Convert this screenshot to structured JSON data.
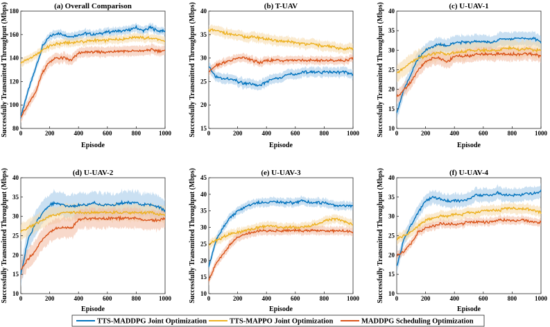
{
  "figure": {
    "series_names": [
      "TTS-MADDPG Joint Optimization",
      "TTS-MAPPO Joint Optimization",
      "MADDPG Scheduling Optimization"
    ],
    "series_colors": [
      "#0072BD",
      "#EDB120",
      "#D95319"
    ],
    "band_colors": [
      "#9EC7E8",
      "#F5D9A8",
      "#F2B9A0"
    ],
    "shared_ylabel": "Successfully Transmitted Throughput (Mbps)",
    "shared_xlabel": "Episode"
  },
  "chart_data": [
    {
      "type": "line",
      "title": "(a) Overall Comparison",
      "xlabel": "Episode",
      "ylabel": "Successfully Transmitted Throughput (Mbps)",
      "xlim": [
        0,
        1000
      ],
      "ylim": [
        80,
        180
      ],
      "xticks": [
        0,
        200,
        400,
        600,
        800,
        1000
      ],
      "yticks": [
        80,
        100,
        120,
        140,
        160,
        180
      ],
      "x": [
        0,
        50,
        100,
        150,
        200,
        250,
        300,
        350,
        400,
        450,
        500,
        550,
        600,
        650,
        700,
        750,
        800,
        850,
        900,
        950,
        1000
      ],
      "series": [
        {
          "name": "TTS-MADDPG Joint Optimization",
          "values": [
            90,
            112,
            130,
            150,
            158,
            161,
            160,
            158,
            160,
            161,
            160,
            161,
            162,
            163,
            163,
            164,
            166,
            163,
            166,
            163,
            163
          ],
          "band": 4
        },
        {
          "name": "TTS-MAPPO Joint Optimization",
          "values": [
            136,
            139,
            142,
            147,
            150,
            152,
            153,
            153,
            154,
            154,
            155,
            155,
            155,
            156,
            156,
            157,
            158,
            157,
            157,
            156,
            154
          ],
          "band": 4
        },
        {
          "name": "MADDPG Scheduling Optimization",
          "values": [
            90,
            100,
            110,
            128,
            137,
            140,
            140,
            138,
            144,
            145,
            145,
            145,
            145,
            146,
            146,
            146,
            146,
            146,
            147,
            146,
            146
          ],
          "band": 5
        }
      ]
    },
    {
      "type": "line",
      "title": "(b) T-UAV",
      "xlabel": "Episode",
      "ylabel": "Successfully Transmitted Throughput (Mbps)",
      "xlim": [
        0,
        1000
      ],
      "ylim": [
        15,
        40
      ],
      "xticks": [
        0,
        200,
        400,
        600,
        800,
        1000
      ],
      "yticks": [
        15,
        20,
        25,
        30,
        35,
        40
      ],
      "x": [
        0,
        50,
        100,
        150,
        200,
        250,
        300,
        350,
        400,
        450,
        500,
        550,
        600,
        650,
        700,
        750,
        800,
        850,
        900,
        950,
        1000
      ],
      "series": [
        {
          "name": "TTS-MADDPG Joint Optimization",
          "values": [
            28,
            26,
            25.5,
            25.5,
            25,
            24.5,
            24.5,
            24,
            25,
            25.5,
            26,
            26.5,
            26.5,
            27,
            27,
            27,
            27,
            27,
            27,
            27,
            26.5
          ],
          "band": 1.2
        },
        {
          "name": "TTS-MAPPO Joint Optimization",
          "values": [
            36,
            35.8,
            35.5,
            35,
            34.8,
            34.5,
            34.5,
            34.3,
            34,
            33.8,
            33.5,
            33.5,
            33.3,
            33,
            33,
            32.8,
            32.5,
            32.5,
            32,
            32,
            32
          ],
          "band": 1.2
        },
        {
          "name": "MADDPG Scheduling Optimization",
          "values": [
            27,
            28.5,
            29,
            29.5,
            30,
            30,
            29.5,
            29,
            29.5,
            29.5,
            29.5,
            29.5,
            29.5,
            29.5,
            29.5,
            29.5,
            29.5,
            29.5,
            29.5,
            29.5,
            30
          ],
          "band": 1.0
        }
      ]
    },
    {
      "type": "line",
      "title": "(c) U-UAV-1",
      "xlabel": "Episode",
      "ylabel": "Successfully Transmitted Throughput (Mbps)",
      "xlim": [
        0,
        1000
      ],
      "ylim": [
        10,
        40
      ],
      "xticks": [
        0,
        200,
        400,
        600,
        800,
        1000
      ],
      "yticks": [
        10,
        15,
        20,
        25,
        30,
        35,
        40
      ],
      "x": [
        0,
        50,
        100,
        150,
        200,
        250,
        300,
        350,
        400,
        450,
        500,
        550,
        600,
        650,
        700,
        750,
        800,
        850,
        900,
        950,
        1000
      ],
      "series": [
        {
          "name": "TTS-MADDPG Joint Optimization",
          "values": [
            14,
            20,
            24,
            28,
            30,
            31,
            31.5,
            31,
            32,
            32,
            32,
            32.5,
            32,
            32,
            32.5,
            33,
            33,
            33,
            33,
            33,
            32
          ],
          "band": 2
        },
        {
          "name": "TTS-MAPPO Joint Optimization",
          "values": [
            24,
            25.5,
            27,
            28,
            28.5,
            29,
            29.5,
            29,
            29.5,
            29.5,
            30,
            30,
            30,
            30,
            30,
            30.5,
            30.5,
            30,
            30.5,
            30,
            30
          ],
          "band": 2.5
        },
        {
          "name": "MADDPG Scheduling Optimization",
          "values": [
            18,
            20,
            22,
            25,
            27,
            28,
            28,
            27,
            28.5,
            28.5,
            28.5,
            29,
            29,
            29,
            29,
            29,
            29,
            29,
            29,
            29,
            28.5
          ],
          "band": 2
        }
      ]
    },
    {
      "type": "line",
      "title": "(d) U-UAV-2",
      "xlabel": "Episode",
      "ylabel": "Successfully Transmitted Throughput (Mbps)",
      "xlim": [
        0,
        1000
      ],
      "ylim": [
        10,
        40
      ],
      "xticks": [
        0,
        200,
        400,
        600,
        800,
        1000
      ],
      "yticks": [
        10,
        15,
        20,
        25,
        30,
        35,
        40
      ],
      "x": [
        0,
        50,
        100,
        150,
        200,
        250,
        300,
        350,
        400,
        450,
        500,
        550,
        600,
        650,
        700,
        750,
        800,
        850,
        900,
        950,
        1000
      ],
      "series": [
        {
          "name": "TTS-MADDPG Joint Optimization",
          "values": [
            15,
            24,
            28,
            31,
            33,
            33.5,
            33,
            32.5,
            33,
            33,
            33.5,
            33,
            33,
            33,
            33.5,
            33.5,
            33.5,
            33,
            33,
            32.5,
            31.5
          ],
          "band": 3.5
        },
        {
          "name": "TTS-MAPPO Joint Optimization",
          "values": [
            26,
            27,
            28,
            29,
            30,
            30.5,
            31,
            31,
            31,
            31,
            31,
            31,
            31,
            31,
            31,
            31,
            31,
            31,
            31,
            30.5,
            30.5
          ],
          "band": 2.5
        },
        {
          "name": "MADDPG Scheduling Optimization",
          "values": [
            16,
            19,
            21,
            24,
            26,
            27,
            27,
            27,
            29,
            29.5,
            29.5,
            29.5,
            29.5,
            29.5,
            29.5,
            29.5,
            29.5,
            29,
            29,
            29,
            29.5
          ],
          "band": 3
        }
      ]
    },
    {
      "type": "line",
      "title": "(e) U-UAV-3",
      "xlabel": "Episode",
      "ylabel": "Successfully Transmitted Throughput (Mbps)",
      "xlim": [
        0,
        1000
      ],
      "ylim": [
        10,
        45
      ],
      "xticks": [
        0,
        200,
        400,
        600,
        800,
        1000
      ],
      "yticks": [
        10,
        15,
        20,
        25,
        30,
        35,
        40,
        45
      ],
      "x": [
        0,
        50,
        100,
        150,
        200,
        250,
        300,
        350,
        400,
        450,
        500,
        550,
        600,
        650,
        700,
        750,
        800,
        850,
        900,
        950,
        1000
      ],
      "series": [
        {
          "name": "TTS-MADDPG Joint Optimization",
          "values": [
            18,
            26,
            30,
            33,
            35,
            36,
            37,
            37.5,
            37.5,
            38,
            37.5,
            37.5,
            37.5,
            38,
            37.5,
            37.5,
            37.5,
            37,
            36.5,
            36.5,
            36.5
          ],
          "band": 1.5
        },
        {
          "name": "TTS-MAPPO Joint Optimization",
          "values": [
            25,
            26,
            27,
            28,
            28.5,
            29,
            29.5,
            30,
            30.5,
            30.5,
            30,
            30,
            30,
            30,
            30.5,
            31,
            32,
            32.5,
            32.5,
            31.5,
            31
          ],
          "band": 1.5
        },
        {
          "name": "MADDPG Scheduling Optimization",
          "values": [
            14,
            19,
            22,
            25,
            27,
            28,
            28.5,
            29,
            29,
            29,
            29,
            29,
            29,
            29,
            29,
            29,
            29,
            29,
            29,
            29,
            28.5
          ],
          "band": 1.5
        }
      ]
    },
    {
      "type": "line",
      "title": "(f) U-UAV-4",
      "xlabel": "Episode",
      "ylabel": "Successfully Transmitted Throughput (Mbps)",
      "xlim": [
        0,
        1000
      ],
      "ylim": [
        10,
        40
      ],
      "xticks": [
        0,
        200,
        400,
        600,
        800,
        1000
      ],
      "yticks": [
        10,
        15,
        20,
        25,
        30,
        35,
        40
      ],
      "x": [
        0,
        50,
        100,
        150,
        200,
        250,
        300,
        350,
        400,
        450,
        500,
        550,
        600,
        650,
        700,
        750,
        800,
        850,
        900,
        950,
        1000
      ],
      "series": [
        {
          "name": "TTS-MADDPG Joint Optimization",
          "values": [
            17,
            24,
            28,
            31,
            34,
            35,
            34.5,
            34,
            34,
            34,
            34.5,
            35.5,
            35.5,
            35.5,
            36,
            35.5,
            35.5,
            35.5,
            36,
            36,
            36.5
          ],
          "band": 2
        },
        {
          "name": "TTS-MAPPO Joint Optimization",
          "values": [
            24,
            25,
            26,
            27.5,
            29,
            29.5,
            30,
            30,
            30.5,
            30.5,
            31,
            31,
            31.5,
            31.5,
            31.5,
            32,
            32,
            32,
            32,
            31.5,
            31
          ],
          "band": 1.5
        },
        {
          "name": "MADDPG Scheduling Optimization",
          "values": [
            20,
            21,
            23,
            26,
            27,
            27.5,
            28,
            28,
            28,
            28,
            28.5,
            28.5,
            28.5,
            28.5,
            29,
            29,
            29,
            29,
            29,
            28.5,
            28.5
          ],
          "band": 1.2
        }
      ]
    }
  ]
}
